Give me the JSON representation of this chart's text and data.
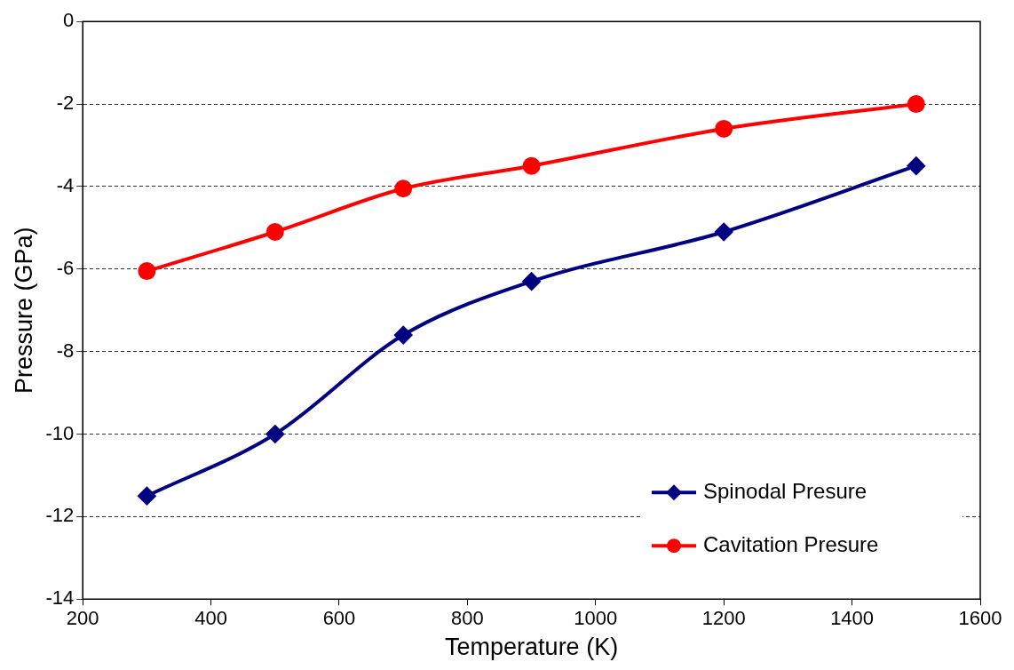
{
  "chart_data": {
    "type": "line",
    "xlabel": "Temperature (K)",
    "ylabel": "Pressure (GPa)",
    "xlim": [
      200,
      1600
    ],
    "xticks": [
      200,
      400,
      600,
      800,
      1000,
      1200,
      1400,
      1600
    ],
    "ylim": [
      -14,
      0
    ],
    "yticks": [
      -14,
      -12,
      -10,
      -8,
      -6,
      -4,
      -2,
      0
    ],
    "grid": "y",
    "legend": "bottom right",
    "series": [
      {
        "name": "Spinodal Presure",
        "color": "#000080",
        "marker": "diamond",
        "x": [
          300,
          500,
          700,
          900,
          1200,
          1500
        ],
        "values": [
          -11.5,
          -10.0,
          -7.6,
          -6.3,
          -5.1,
          -3.5
        ]
      },
      {
        "name": "Cavitation Presure",
        "color": "#ff0000",
        "marker": "circle",
        "x": [
          300,
          500,
          700,
          900,
          1200,
          1500
        ],
        "values": [
          -6.05,
          -5.1,
          -4.05,
          -3.5,
          -2.6,
          -2.0
        ]
      }
    ]
  }
}
